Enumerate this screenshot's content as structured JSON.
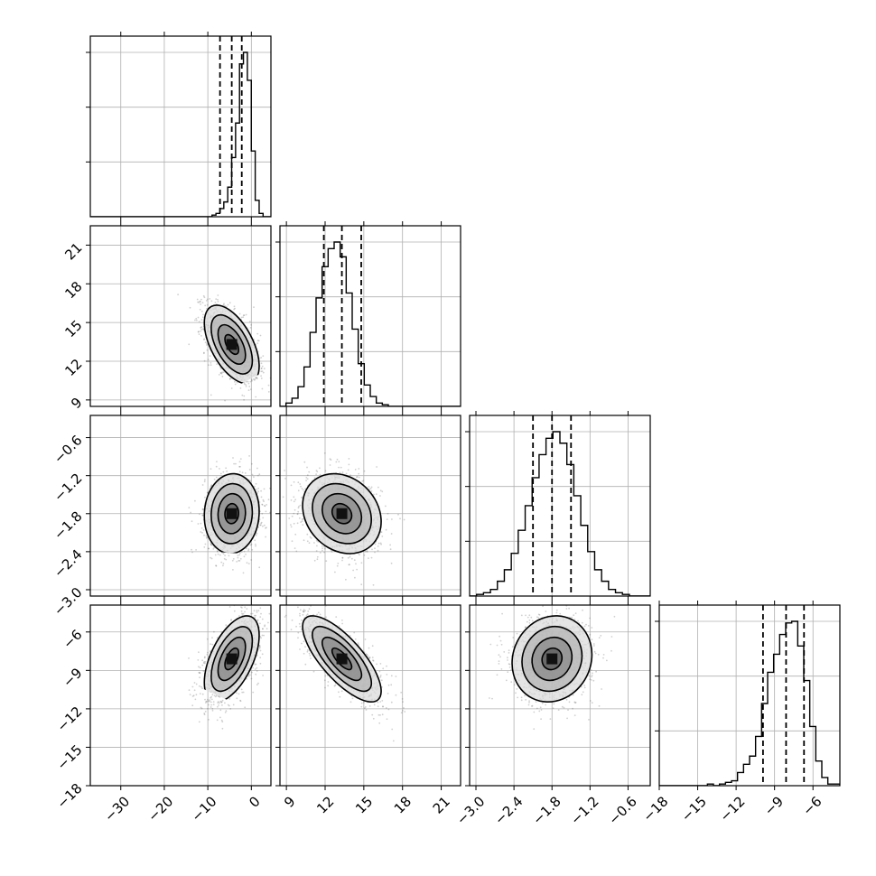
{
  "chart_data": {
    "type": "corner",
    "parameters": [
      {
        "ticks": [
          -30,
          -20,
          -10,
          0
        ],
        "tick_labels": [
          "−30",
          "−20",
          "−10",
          "0"
        ],
        "range": [
          -37,
          4.5
        ],
        "mean": -4.5,
        "std": 3.0,
        "quantiles": [
          -7.2,
          -4.5,
          -2.2
        ],
        "hist": [
          0,
          0,
          0,
          0,
          0,
          0,
          0,
          0,
          0,
          0,
          0,
          0,
          0,
          0,
          0,
          0,
          0,
          0,
          0,
          0,
          0,
          0,
          0,
          0,
          0,
          0,
          0,
          0,
          0,
          0,
          0,
          0.01,
          0.02,
          0.05,
          0.09,
          0.18,
          0.36,
          0.57,
          0.93,
          1.0,
          0.83,
          0.4,
          0.1,
          0.02,
          0,
          0
        ]
      },
      {
        "ticks": [
          9,
          12,
          15,
          18,
          21
        ],
        "tick_labels": [
          "9",
          "12",
          "15",
          "18",
          "21"
        ],
        "range": [
          8.5,
          22.5
        ],
        "mean": 13.3,
        "std": 1.45,
        "quantiles": [
          11.9,
          13.3,
          14.8
        ],
        "hist": [
          0,
          0.02,
          0.05,
          0.12,
          0.24,
          0.45,
          0.66,
          0.85,
          0.96,
          1.0,
          0.91,
          0.69,
          0.47,
          0.26,
          0.13,
          0.06,
          0.02,
          0.01,
          0,
          0,
          0,
          0,
          0,
          0,
          0,
          0,
          0,
          0,
          0,
          0
        ]
      },
      {
        "ticks": [
          -3.0,
          -2.4,
          -1.8,
          -1.2,
          -0.6
        ],
        "tick_labels": [
          "−3.0",
          "−2.4",
          "−1.8",
          "−1.2",
          "−0.6"
        ],
        "range": [
          -3.1,
          -0.25
        ],
        "mean": -1.8,
        "std": 0.3,
        "quantiles": [
          -2.1,
          -1.8,
          -1.5
        ],
        "hist": [
          0,
          0.01,
          0.02,
          0.04,
          0.09,
          0.16,
          0.26,
          0.4,
          0.55,
          0.72,
          0.86,
          0.96,
          1.0,
          0.93,
          0.8,
          0.61,
          0.43,
          0.27,
          0.16,
          0.09,
          0.04,
          0.02,
          0.01,
          0,
          0,
          0
        ]
      },
      {
        "ticks": [
          -18,
          -15,
          -12,
          -9,
          -6
        ],
        "tick_labels": [
          "−18",
          "−15",
          "−12",
          "−9",
          "−6"
        ],
        "range": [
          -18,
          -3.9
        ],
        "mean": -8.1,
        "std": 1.6,
        "quantiles": [
          -9.9,
          -8.1,
          -6.7
        ],
        "hist": [
          0,
          0,
          0,
          0,
          0,
          0,
          0,
          0,
          0.01,
          0,
          0.01,
          0.02,
          0.03,
          0.08,
          0.13,
          0.18,
          0.3,
          0.5,
          0.69,
          0.8,
          0.92,
          0.99,
          1.0,
          0.85,
          0.64,
          0.36,
          0.15,
          0.05,
          0.01,
          0.01
        ]
      }
    ],
    "correlations": [
      [
        1.0,
        -0.55,
        0.05,
        0.55
      ],
      [
        -0.55,
        1.0,
        -0.2,
        -0.75
      ],
      [
        0.05,
        -0.2,
        1.0,
        0.1
      ],
      [
        0.55,
        -0.75,
        0.1,
        1.0
      ]
    ],
    "contour_levels_sigma": [
      0.5,
      1.0,
      1.5,
      2.0
    ],
    "samples_per_panel": 1400,
    "grid": true
  }
}
